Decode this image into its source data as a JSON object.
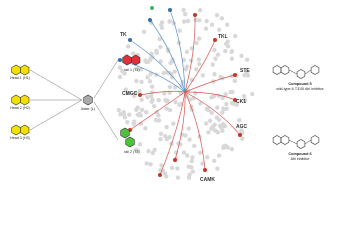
{
  "left_panel": {
    "heads": [
      "Head 1 (H1)",
      "Head 2 (H2)",
      "Head 3 (H3)"
    ],
    "linker": "linker (L)",
    "tails": [
      "tail 1 (T1)",
      "tail 2 (T2)"
    ]
  },
  "kinome": {
    "groups": [
      "TK",
      "TKL",
      "STE",
      "CMGC",
      "CK1",
      "AGC",
      "CAMK"
    ]
  },
  "compounds": [
    {
      "name": "Compound 5",
      "description": "wild-type & T315I Abl inhibitor"
    },
    {
      "name": "Compound 6",
      "description": "Abl inhibitor"
    }
  ]
}
